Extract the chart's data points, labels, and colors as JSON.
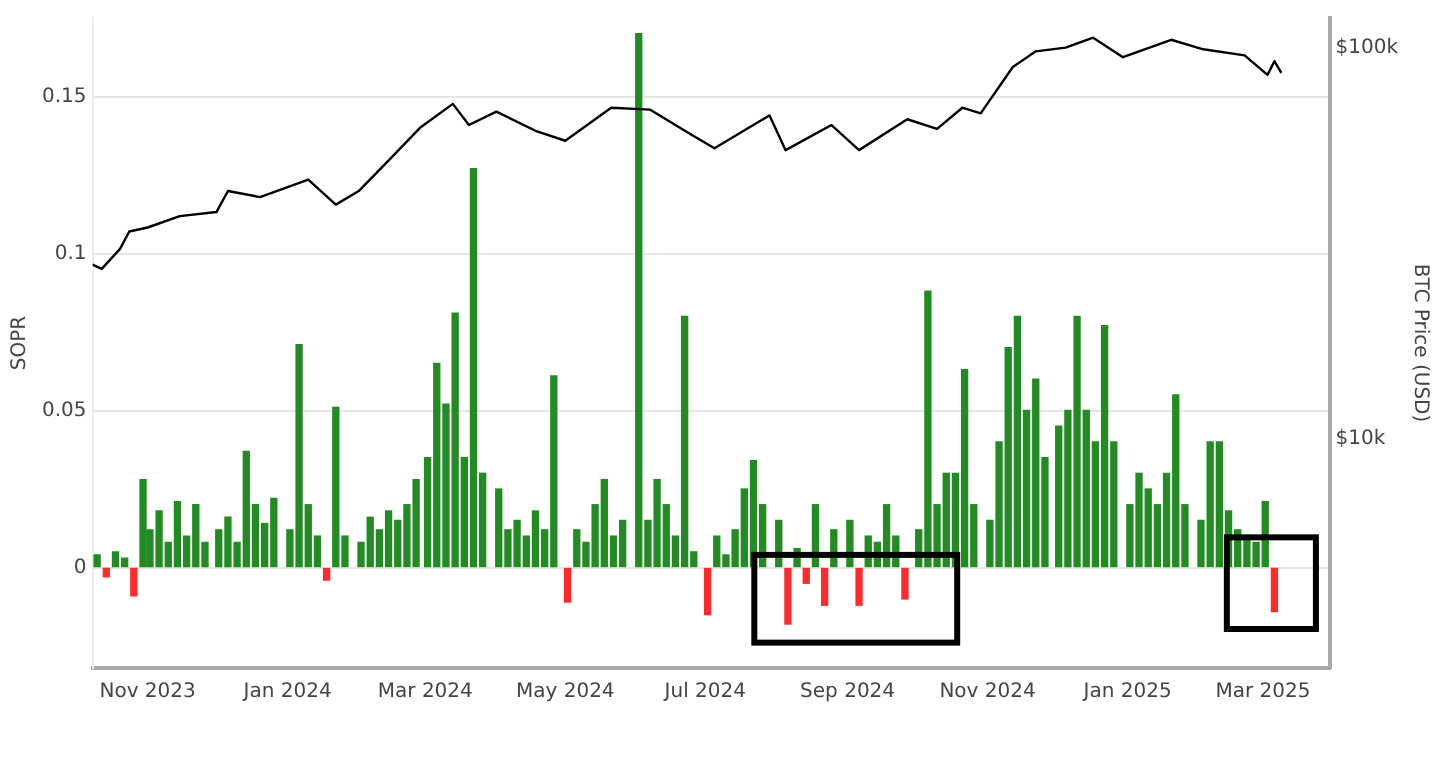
{
  "chart_data": {
    "type": "bar",
    "ylabel": "SOPR",
    "y2label": "BTC Price (USD)",
    "xlim": [
      "2023-10-08",
      "2025-03-30"
    ],
    "xticks": [
      {
        "value": "2023-11-01",
        "label": "Nov 2023"
      },
      {
        "value": "2024-01-01",
        "label": "Jan 2024"
      },
      {
        "value": "2024-03-01",
        "label": "Mar 2024"
      },
      {
        "value": "2024-05-01",
        "label": "May 2024"
      },
      {
        "value": "2024-07-01",
        "label": "Jul 2024"
      },
      {
        "value": "2024-09-01",
        "label": "Sep 2024"
      },
      {
        "value": "2024-11-01",
        "label": "Nov 2024"
      },
      {
        "value": "2025-01-01",
        "label": "Jan 2025"
      },
      {
        "value": "2025-03-01",
        "label": "Mar 2025"
      }
    ],
    "ylim": [
      -0.032,
      0.175
    ],
    "yticks": [
      0,
      0.05,
      0.1,
      0.15
    ],
    "y2lim": [
      2600,
      119000
    ],
    "y2ticks": [
      {
        "value": 10000,
        "label": "$10k"
      },
      {
        "value": 100000,
        "label": "$100k"
      }
    ],
    "log": "y2",
    "grid": "y",
    "legend": false,
    "series": [
      {
        "x": [
          "2023-10-10",
          "2023-10-14",
          "2023-10-18",
          "2023-10-22",
          "2023-10-26",
          "2023-10-30",
          "2023-11-02",
          "2023-11-06",
          "2023-11-10",
          "2023-11-14",
          "2023-11-18",
          "2023-11-22",
          "2023-11-26",
          "2023-12-02",
          "2023-12-06",
          "2023-12-10",
          "2023-12-14",
          "2023-12-18",
          "2023-12-22",
          "2023-12-26",
          "2024-01-02",
          "2024-01-06",
          "2024-01-10",
          "2024-01-14",
          "2024-01-18",
          "2024-01-22",
          "2024-01-26",
          "2024-02-02",
          "2024-02-06",
          "2024-02-10",
          "2024-02-14",
          "2024-02-18",
          "2024-02-22",
          "2024-02-26",
          "2024-03-02",
          "2024-03-06",
          "2024-03-10",
          "2024-03-14",
          "2024-03-18",
          "2024-03-22",
          "2024-03-26",
          "2024-04-02",
          "2024-04-06",
          "2024-04-10",
          "2024-04-14",
          "2024-04-18",
          "2024-04-22",
          "2024-04-26",
          "2024-05-02",
          "2024-05-06",
          "2024-05-10",
          "2024-05-14",
          "2024-05-18",
          "2024-05-22",
          "2024-05-26",
          "2024-06-02",
          "2024-06-06",
          "2024-06-10",
          "2024-06-14",
          "2024-06-18",
          "2024-06-22",
          "2024-06-26",
          "2024-07-02",
          "2024-07-06",
          "2024-07-10",
          "2024-07-14",
          "2024-07-18",
          "2024-07-22",
          "2024-07-26",
          "2024-08-02",
          "2024-08-06",
          "2024-08-10",
          "2024-08-14",
          "2024-08-18",
          "2024-08-22",
          "2024-08-26",
          "2024-09-02",
          "2024-09-06",
          "2024-09-10",
          "2024-09-14",
          "2024-09-18",
          "2024-09-22",
          "2024-09-26",
          "2024-10-02",
          "2024-10-06",
          "2024-10-10",
          "2024-10-14",
          "2024-10-18",
          "2024-10-22",
          "2024-10-26",
          "2024-11-02",
          "2024-11-06",
          "2024-11-10",
          "2024-11-14",
          "2024-11-18",
          "2024-11-22",
          "2024-11-26",
          "2024-12-02",
          "2024-12-06",
          "2024-12-10",
          "2024-12-14",
          "2024-12-18",
          "2024-12-22",
          "2024-12-26",
          "2025-01-02",
          "2025-01-06",
          "2025-01-10",
          "2025-01-14",
          "2025-01-18",
          "2025-01-22",
          "2025-01-26",
          "2025-02-02",
          "2025-02-06",
          "2025-02-10",
          "2025-02-14",
          "2025-02-18",
          "2025-02-22",
          "2025-02-26",
          "2025-03-02",
          "2025-03-06"
        ],
        "values": [
          0.004,
          -0.003,
          0.005,
          0.003,
          -0.009,
          0.028,
          0.012,
          0.018,
          0.008,
          0.021,
          0.01,
          0.02,
          0.008,
          0.012,
          0.016,
          0.008,
          0.037,
          0.02,
          0.014,
          0.022,
          0.012,
          0.071,
          0.02,
          0.01,
          -0.004,
          0.051,
          0.01,
          0.008,
          0.016,
          0.012,
          0.018,
          0.015,
          0.02,
          0.028,
          0.035,
          0.065,
          0.052,
          0.081,
          0.035,
          0.127,
          0.03,
          0.025,
          0.012,
          0.015,
          0.01,
          0.018,
          0.012,
          0.061,
          -0.011,
          0.012,
          0.008,
          0.02,
          0.028,
          0.01,
          0.015,
          0.17,
          0.015,
          0.028,
          0.02,
          0.01,
          0.08,
          0.005,
          -0.015,
          0.01,
          0.004,
          0.012,
          0.025,
          0.034,
          0.02,
          0.015,
          -0.018,
          0.006,
          -0.005,
          0.02,
          -0.012,
          0.012,
          0.015,
          -0.012,
          0.01,
          0.008,
          0.02,
          0.01,
          -0.01,
          0.012,
          0.088,
          0.02,
          0.03,
          0.03,
          0.063,
          0.02,
          0.015,
          0.04,
          0.07,
          0.08,
          0.05,
          0.06,
          0.035,
          0.045,
          0.05,
          0.08,
          0.05,
          0.04,
          0.077,
          0.04,
          0.02,
          0.03,
          0.025,
          0.02,
          0.03,
          0.055,
          0.02,
          0.015,
          0.04,
          0.04,
          0.018,
          0.012,
          0.01,
          0.008,
          0.021,
          -0.014
        ],
        "colors": [
          "#228b22",
          "#ff2a2a",
          "#228b22",
          "#228b22",
          "#ff2a2a",
          "#228b22",
          "#228b22",
          "#228b22",
          "#228b22",
          "#228b22",
          "#228b22",
          "#228b22",
          "#228b22",
          "#228b22",
          "#228b22",
          "#228b22",
          "#228b22",
          "#228b22",
          "#228b22",
          "#228b22",
          "#228b22",
          "#228b22",
          "#228b22",
          "#228b22",
          "#ff2a2a",
          "#228b22",
          "#228b22",
          "#228b22",
          "#228b22",
          "#228b22",
          "#228b22",
          "#228b22",
          "#228b22",
          "#228b22",
          "#228b22",
          "#228b22",
          "#228b22",
          "#228b22",
          "#228b22",
          "#228b22",
          "#228b22",
          "#228b22",
          "#228b22",
          "#228b22",
          "#228b22",
          "#228b22",
          "#228b22",
          "#228b22",
          "#ff2a2a",
          "#228b22",
          "#228b22",
          "#228b22",
          "#228b22",
          "#228b22",
          "#228b22",
          "#228b22",
          "#228b22",
          "#228b22",
          "#228b22",
          "#228b22",
          "#228b22",
          "#228b22",
          "#ff2a2a",
          "#228b22",
          "#228b22",
          "#228b22",
          "#228b22",
          "#228b22",
          "#228b22",
          "#228b22",
          "#ff2a2a",
          "#228b22",
          "#ff2a2a",
          "#228b22",
          "#ff2a2a",
          "#228b22",
          "#228b22",
          "#ff2a2a",
          "#228b22",
          "#228b22",
          "#228b22",
          "#228b22",
          "#ff2a2a",
          "#228b22",
          "#228b22",
          "#228b22",
          "#228b22",
          "#228b22",
          "#228b22",
          "#228b22",
          "#228b22",
          "#228b22",
          "#228b22",
          "#228b22",
          "#228b22",
          "#228b22",
          "#228b22",
          "#228b22",
          "#228b22",
          "#228b22",
          "#228b22",
          "#228b22",
          "#228b22",
          "#228b22",
          "#228b22",
          "#228b22",
          "#228b22",
          "#228b22",
          "#228b22",
          "#228b22",
          "#228b22",
          "#228b22",
          "#228b22",
          "#228b22",
          "#228b22",
          "#228b22",
          "#228b22",
          "#228b22",
          "#228b22",
          "#ff2a2a"
        ]
      },
      {
        "type": "line",
        "axis": "y2",
        "color": "#000000",
        "x": [
          "2023-10-08",
          "2023-10-12",
          "2023-10-20",
          "2023-10-24",
          "2023-11-01",
          "2023-11-15",
          "2023-12-01",
          "2023-12-06",
          "2023-12-20",
          "2024-01-10",
          "2024-01-22",
          "2024-02-01",
          "2024-02-15",
          "2024-02-28",
          "2024-03-13",
          "2024-03-20",
          "2024-04-01",
          "2024-04-18",
          "2024-05-01",
          "2024-05-21",
          "2024-06-07",
          "2024-06-25",
          "2024-07-05",
          "2024-07-29",
          "2024-08-05",
          "2024-08-25",
          "2024-09-06",
          "2024-09-27",
          "2024-10-10",
          "2024-10-21",
          "2024-10-29",
          "2024-11-12",
          "2024-11-22",
          "2024-12-05",
          "2024-12-17",
          "2024-12-30",
          "2025-01-20",
          "2025-02-03",
          "2025-02-21",
          "2025-03-03",
          "2025-03-06",
          "2025-03-09"
        ],
        "values": [
          27900,
          27200,
          30600,
          33900,
          34700,
          37100,
          38000,
          43000,
          41500,
          46000,
          39700,
          43000,
          52200,
          62600,
          71800,
          63400,
          68600,
          61300,
          57800,
          70200,
          69400,
          59900,
          55300,
          67100,
          54700,
          63400,
          54700,
          65600,
          62000,
          70200,
          67900,
          89200,
          97800,
          100000,
          106000,
          94500,
          104700,
          99000,
          95500,
          85200,
          92300,
          86200
        ]
      }
    ]
  }
}
